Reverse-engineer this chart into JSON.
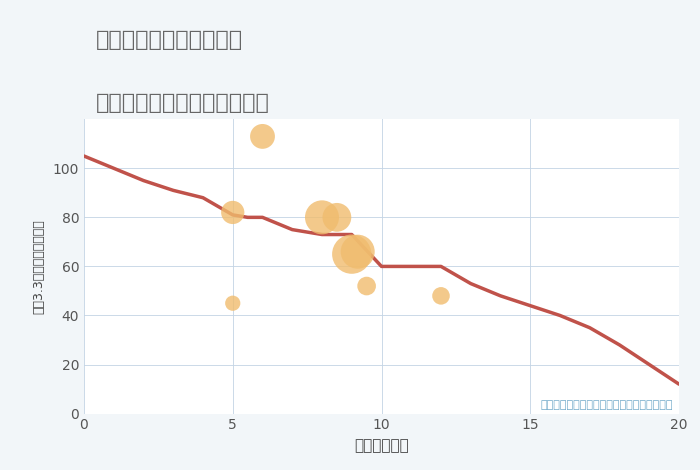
{
  "title_line1": "福岡県太宰府市青葉台の",
  "title_line2": "駅距離別中古マンション価格",
  "xlabel": "駅距離（分）",
  "ylabel": "坪（3.3㎡）単価（万円）",
  "background_color": "#f2f6f9",
  "plot_bg_color": "#ffffff",
  "line_color": "#c0524a",
  "line_x": [
    0,
    1,
    2,
    3,
    4,
    5,
    5.5,
    6,
    7,
    8,
    9,
    10,
    11,
    12,
    13,
    14,
    15,
    16,
    17,
    18,
    19,
    20
  ],
  "line_y": [
    105,
    100,
    95,
    91,
    88,
    81,
    80,
    80,
    75,
    73,
    73,
    60,
    60,
    60,
    53,
    48,
    44,
    40,
    35,
    28,
    20,
    12
  ],
  "scatter_x": [
    5,
    5,
    6,
    8,
    8.5,
    9,
    9.2,
    9.5,
    12
  ],
  "scatter_y": [
    45,
    82,
    113,
    80,
    80,
    65,
    66,
    52,
    48
  ],
  "scatter_sizes": [
    120,
    280,
    320,
    600,
    430,
    800,
    600,
    180,
    160
  ],
  "scatter_color": "#f0bc6e",
  "scatter_alpha": 0.8,
  "annotation": "円の大きさは、取引のあった物件面積を示す",
  "annotation_color": "#6fa8c8",
  "xlim": [
    0,
    20
  ],
  "ylim": [
    0,
    120
  ],
  "xticks": [
    0,
    5,
    10,
    15,
    20
  ],
  "yticks": [
    0,
    20,
    40,
    60,
    80,
    100
  ]
}
